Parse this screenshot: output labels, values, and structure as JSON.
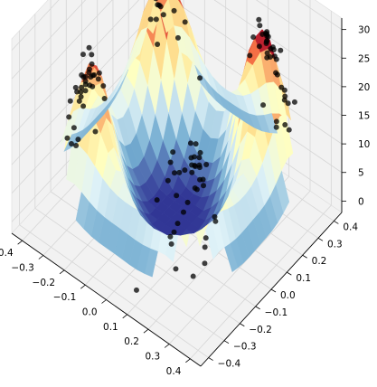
{
  "chart_data": {
    "type": "surface3d",
    "title": "",
    "xlabel": "",
    "ylabel": "",
    "zlabel": "",
    "xlim": [
      -0.45,
      0.45
    ],
    "ylim": [
      -0.45,
      0.45
    ],
    "zlim": [
      -2,
      32
    ],
    "x_ticks": [
      "−0.4",
      "−0.3",
      "−0.2",
      "−0.1",
      "0.0",
      "0.1",
      "0.2",
      "0.3",
      "0.4"
    ],
    "y_ticks": [
      "−0.4",
      "−0.3",
      "−0.2",
      "−0.1",
      "0.0",
      "0.1",
      "0.2",
      "0.3",
      "0.4"
    ],
    "z_ticks": [
      "0",
      "5",
      "10",
      "15",
      "20",
      "25",
      "30"
    ],
    "grid": true,
    "colormap": "RdYlBu_r",
    "pane_color": "#f2f2f2",
    "surface_description": "ring-shaped height surface with four high lobes near (±0.25, ±0.25) and a low interior",
    "scatter_clusters": [
      {
        "center": [
          -0.25,
          0.25
        ],
        "height": 25,
        "spread": 0.07,
        "count": 32
      },
      {
        "center": [
          0.25,
          0.25
        ],
        "height": 28,
        "spread": 0.07,
        "count": 36
      },
      {
        "center": [
          -0.25,
          -0.25
        ],
        "height": 22,
        "spread": 0.07,
        "count": 36
      },
      {
        "center": [
          0.25,
          -0.25
        ],
        "height": 18,
        "spread": 0.08,
        "count": 40
      }
    ],
    "point_color": "#000000"
  }
}
